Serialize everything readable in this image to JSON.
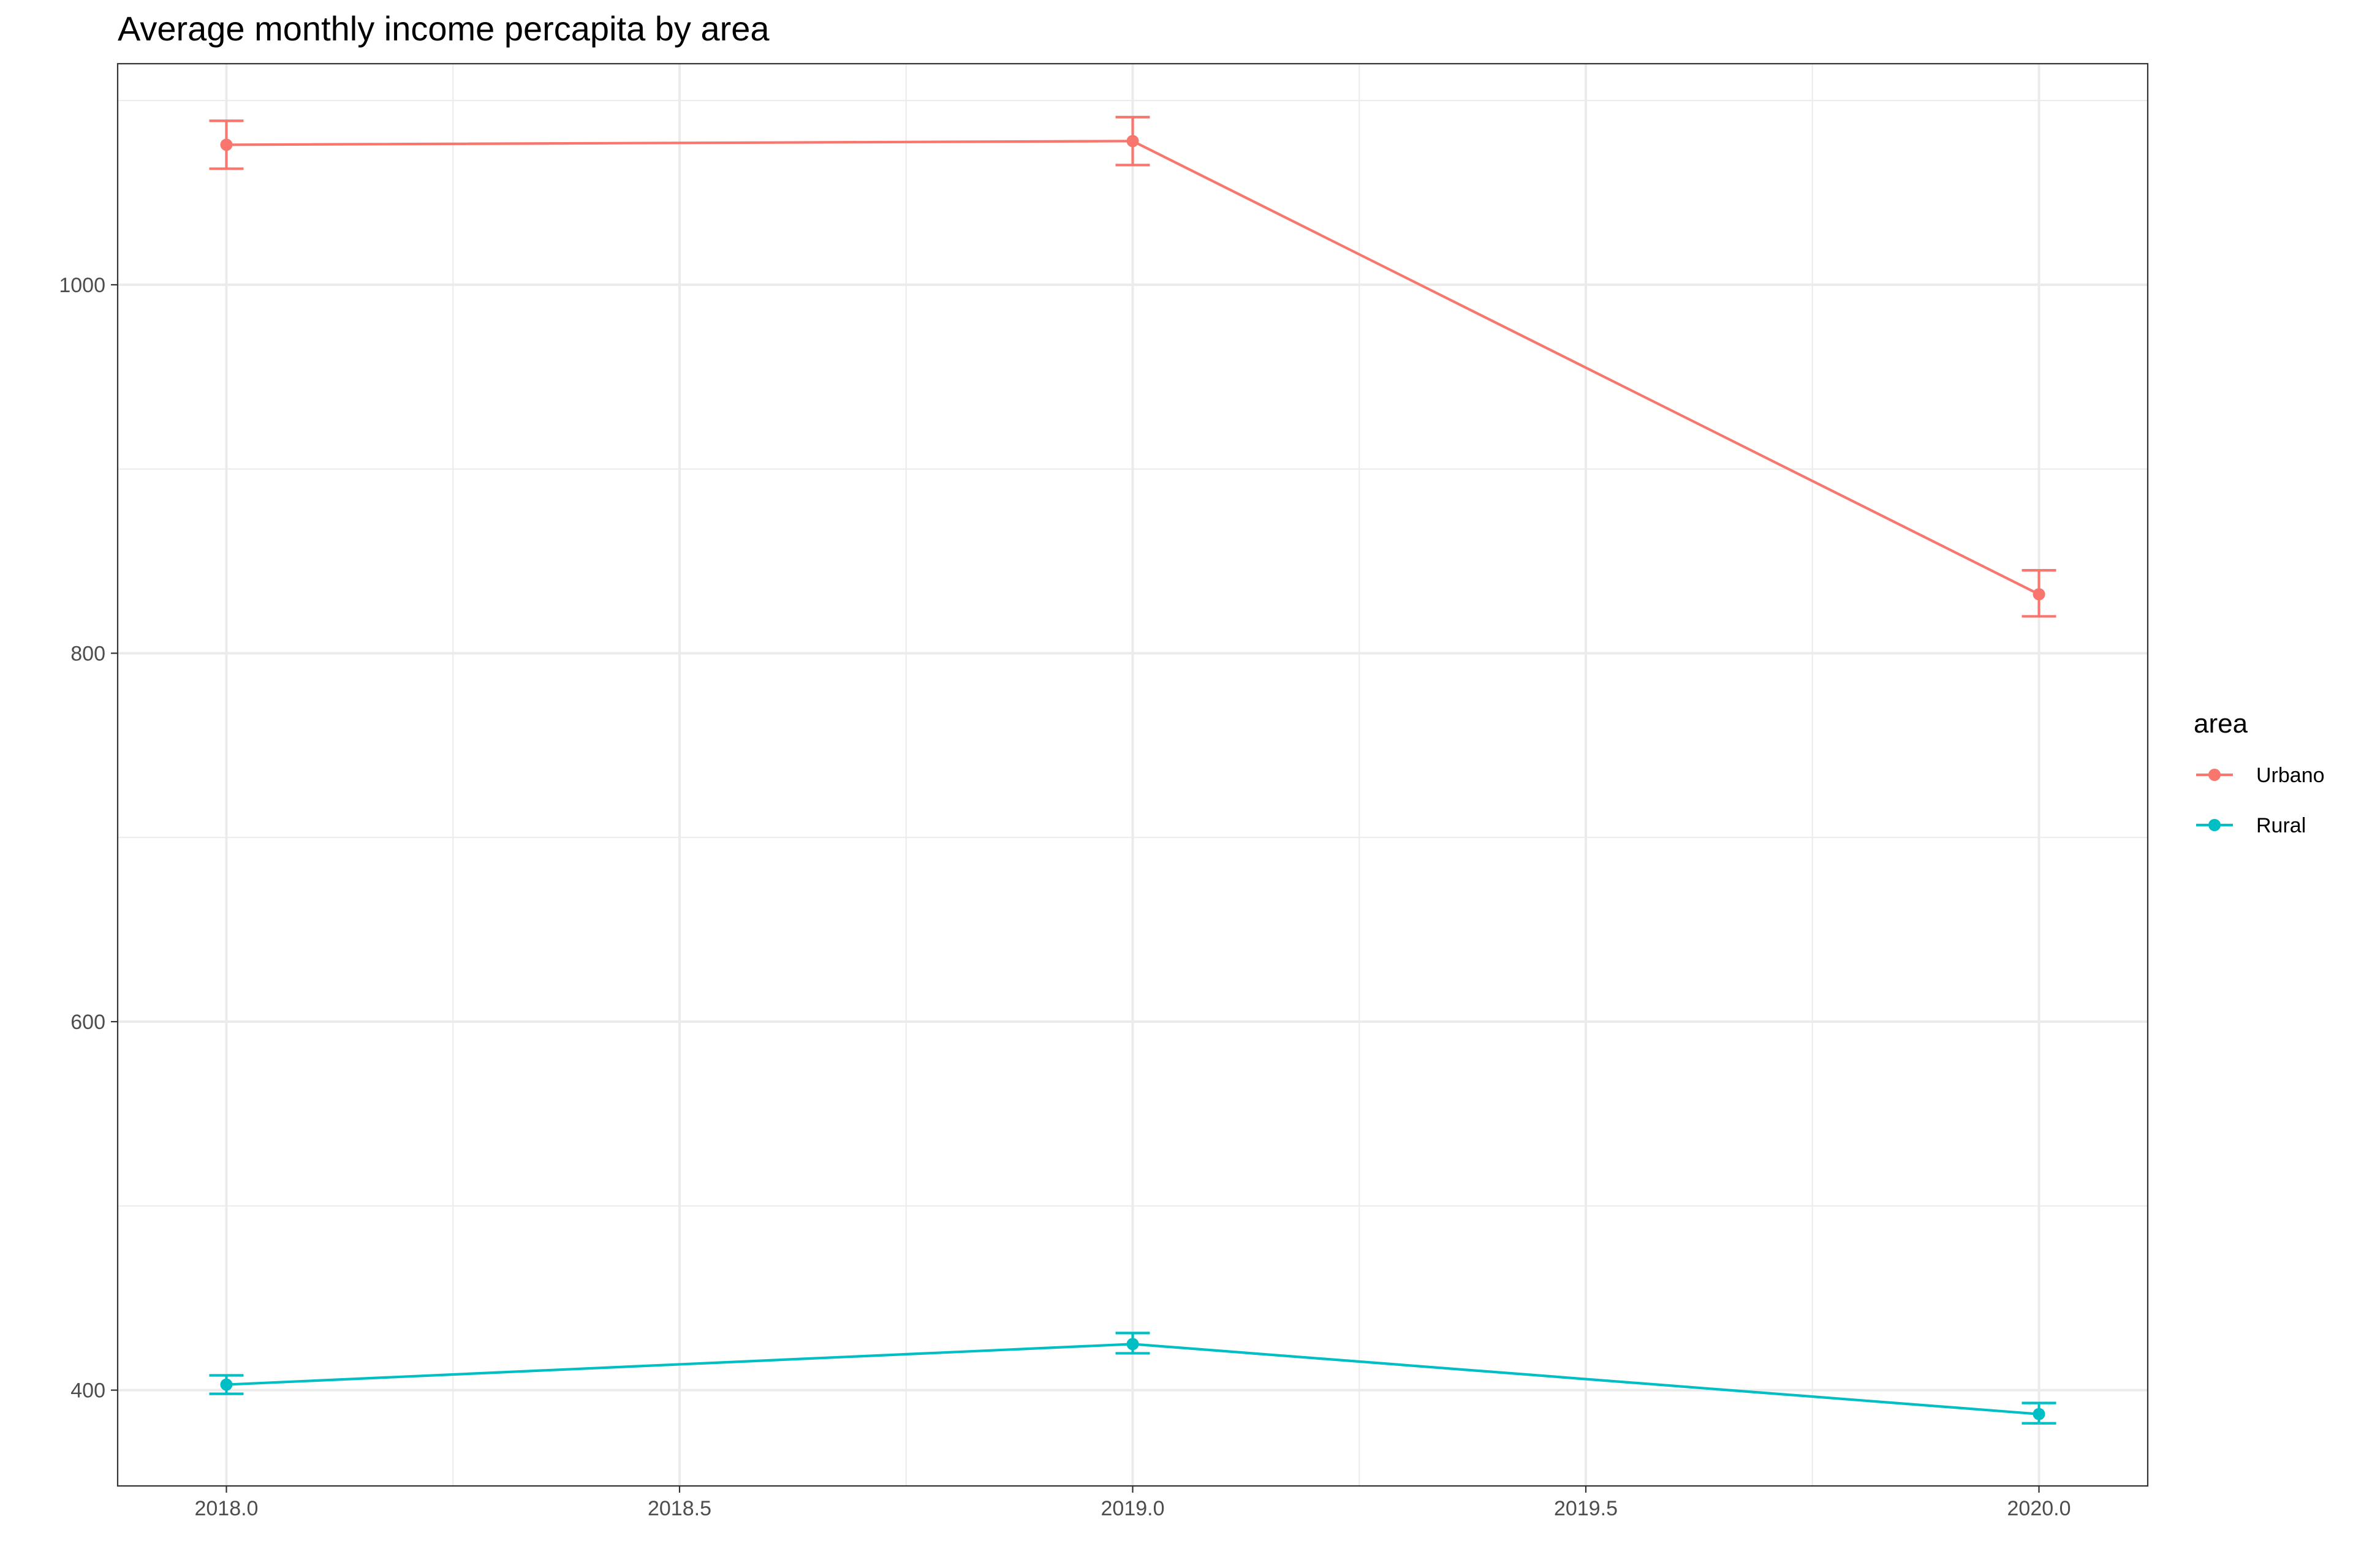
{
  "chart_data": {
    "type": "line",
    "title": "Average monthly income percapita by area",
    "xlabel": "",
    "ylabel": "",
    "xlim": [
      2017.88,
      2020.12
    ],
    "ylim": [
      348,
      1120
    ],
    "x_ticks": [
      2018.0,
      2018.5,
      2019.0,
      2019.5,
      2020.0
    ],
    "x_tick_labels": [
      "2018.0",
      "2018.5",
      "2019.0",
      "2019.5",
      "2020.0"
    ],
    "x_minor": [
      2018.25,
      2018.75,
      2019.25,
      2019.75
    ],
    "y_ticks": [
      400,
      600,
      800,
      1000
    ],
    "y_tick_labels": [
      "400",
      "600",
      "800",
      "1000"
    ],
    "y_minor": [
      500,
      700,
      900,
      1100
    ],
    "grid": true,
    "legend": {
      "title": "area",
      "position": "right"
    },
    "series": [
      {
        "name": "Urbano",
        "color": "#F8766D",
        "x": [
          2018,
          2019,
          2020
        ],
        "y": [
          1076,
          1078,
          832
        ],
        "ymin": [
          1063,
          1065,
          820
        ],
        "ymax": [
          1089,
          1091,
          845
        ]
      },
      {
        "name": "Rural",
        "color": "#00BFC4",
        "x": [
          2018,
          2019,
          2020
        ],
        "y": [
          403,
          425,
          387
        ],
        "ymin": [
          398,
          420,
          382
        ],
        "ymax": [
          408,
          431,
          393
        ]
      }
    ]
  }
}
